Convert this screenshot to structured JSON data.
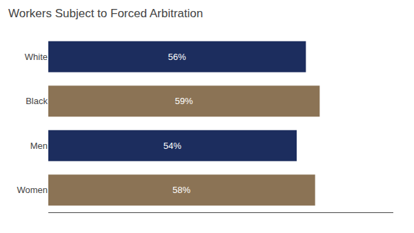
{
  "chart_data": {
    "type": "bar",
    "title": "Workers Subject to Forced Arbitration",
    "orientation": "horizontal",
    "categories": [
      "White",
      "Black",
      "Men",
      "Women"
    ],
    "values": [
      56,
      59,
      54,
      58
    ],
    "value_labels": [
      "56%",
      "59%",
      "54%",
      "58%"
    ],
    "colors": [
      "#1c2d5e",
      "#8b7355",
      "#1c2d5e",
      "#8b7355"
    ],
    "xlim": [
      0,
      75
    ],
    "grid": false,
    "data_labels": true,
    "tick_labels": "y"
  }
}
